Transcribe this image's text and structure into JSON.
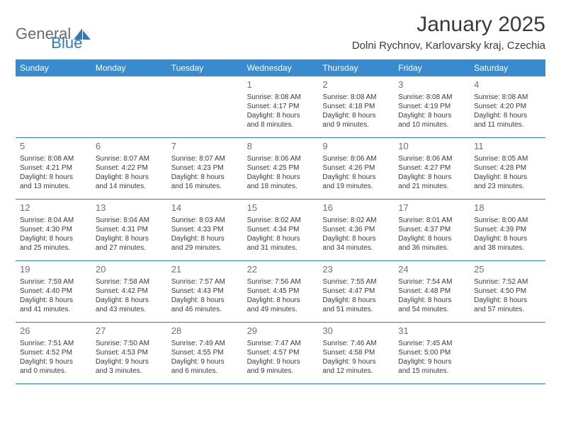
{
  "brand": {
    "word1": "General",
    "word2": "Blue",
    "word1_color": "#6b6b6b",
    "word2_color": "#2e7cc0",
    "logo_fill": "#2e7cc0"
  },
  "title": "January 2025",
  "location": "Dolni Rychnov, Karlovarsky kraj, Czechia",
  "weekday_bg": "#3a8bce",
  "weekday_color": "#ffffff",
  "divider_color": "#2e7cc0",
  "daynum_color": "#707070",
  "text_color": "#3a3a3a",
  "weekdays": [
    "Sunday",
    "Monday",
    "Tuesday",
    "Wednesday",
    "Thursday",
    "Friday",
    "Saturday"
  ],
  "weeks": [
    [
      null,
      null,
      null,
      {
        "n": "1",
        "sr": "Sunrise: 8:08 AM",
        "ss": "Sunset: 4:17 PM",
        "d1": "Daylight: 8 hours",
        "d2": "and 8 minutes."
      },
      {
        "n": "2",
        "sr": "Sunrise: 8:08 AM",
        "ss": "Sunset: 4:18 PM",
        "d1": "Daylight: 8 hours",
        "d2": "and 9 minutes."
      },
      {
        "n": "3",
        "sr": "Sunrise: 8:08 AM",
        "ss": "Sunset: 4:19 PM",
        "d1": "Daylight: 8 hours",
        "d2": "and 10 minutes."
      },
      {
        "n": "4",
        "sr": "Sunrise: 8:08 AM",
        "ss": "Sunset: 4:20 PM",
        "d1": "Daylight: 8 hours",
        "d2": "and 11 minutes."
      }
    ],
    [
      {
        "n": "5",
        "sr": "Sunrise: 8:08 AM",
        "ss": "Sunset: 4:21 PM",
        "d1": "Daylight: 8 hours",
        "d2": "and 13 minutes."
      },
      {
        "n": "6",
        "sr": "Sunrise: 8:07 AM",
        "ss": "Sunset: 4:22 PM",
        "d1": "Daylight: 8 hours",
        "d2": "and 14 minutes."
      },
      {
        "n": "7",
        "sr": "Sunrise: 8:07 AM",
        "ss": "Sunset: 4:23 PM",
        "d1": "Daylight: 8 hours",
        "d2": "and 16 minutes."
      },
      {
        "n": "8",
        "sr": "Sunrise: 8:06 AM",
        "ss": "Sunset: 4:25 PM",
        "d1": "Daylight: 8 hours",
        "d2": "and 18 minutes."
      },
      {
        "n": "9",
        "sr": "Sunrise: 8:06 AM",
        "ss": "Sunset: 4:26 PM",
        "d1": "Daylight: 8 hours",
        "d2": "and 19 minutes."
      },
      {
        "n": "10",
        "sr": "Sunrise: 8:06 AM",
        "ss": "Sunset: 4:27 PM",
        "d1": "Daylight: 8 hours",
        "d2": "and 21 minutes."
      },
      {
        "n": "11",
        "sr": "Sunrise: 8:05 AM",
        "ss": "Sunset: 4:28 PM",
        "d1": "Daylight: 8 hours",
        "d2": "and 23 minutes."
      }
    ],
    [
      {
        "n": "12",
        "sr": "Sunrise: 8:04 AM",
        "ss": "Sunset: 4:30 PM",
        "d1": "Daylight: 8 hours",
        "d2": "and 25 minutes."
      },
      {
        "n": "13",
        "sr": "Sunrise: 8:04 AM",
        "ss": "Sunset: 4:31 PM",
        "d1": "Daylight: 8 hours",
        "d2": "and 27 minutes."
      },
      {
        "n": "14",
        "sr": "Sunrise: 8:03 AM",
        "ss": "Sunset: 4:33 PM",
        "d1": "Daylight: 8 hours",
        "d2": "and 29 minutes."
      },
      {
        "n": "15",
        "sr": "Sunrise: 8:02 AM",
        "ss": "Sunset: 4:34 PM",
        "d1": "Daylight: 8 hours",
        "d2": "and 31 minutes."
      },
      {
        "n": "16",
        "sr": "Sunrise: 8:02 AM",
        "ss": "Sunset: 4:36 PM",
        "d1": "Daylight: 8 hours",
        "d2": "and 34 minutes."
      },
      {
        "n": "17",
        "sr": "Sunrise: 8:01 AM",
        "ss": "Sunset: 4:37 PM",
        "d1": "Daylight: 8 hours",
        "d2": "and 36 minutes."
      },
      {
        "n": "18",
        "sr": "Sunrise: 8:00 AM",
        "ss": "Sunset: 4:39 PM",
        "d1": "Daylight: 8 hours",
        "d2": "and 38 minutes."
      }
    ],
    [
      {
        "n": "19",
        "sr": "Sunrise: 7:59 AM",
        "ss": "Sunset: 4:40 PM",
        "d1": "Daylight: 8 hours",
        "d2": "and 41 minutes."
      },
      {
        "n": "20",
        "sr": "Sunrise: 7:58 AM",
        "ss": "Sunset: 4:42 PM",
        "d1": "Daylight: 8 hours",
        "d2": "and 43 minutes."
      },
      {
        "n": "21",
        "sr": "Sunrise: 7:57 AM",
        "ss": "Sunset: 4:43 PM",
        "d1": "Daylight: 8 hours",
        "d2": "and 46 minutes."
      },
      {
        "n": "22",
        "sr": "Sunrise: 7:56 AM",
        "ss": "Sunset: 4:45 PM",
        "d1": "Daylight: 8 hours",
        "d2": "and 49 minutes."
      },
      {
        "n": "23",
        "sr": "Sunrise: 7:55 AM",
        "ss": "Sunset: 4:47 PM",
        "d1": "Daylight: 8 hours",
        "d2": "and 51 minutes."
      },
      {
        "n": "24",
        "sr": "Sunrise: 7:54 AM",
        "ss": "Sunset: 4:48 PM",
        "d1": "Daylight: 8 hours",
        "d2": "and 54 minutes."
      },
      {
        "n": "25",
        "sr": "Sunrise: 7:52 AM",
        "ss": "Sunset: 4:50 PM",
        "d1": "Daylight: 8 hours",
        "d2": "and 57 minutes."
      }
    ],
    [
      {
        "n": "26",
        "sr": "Sunrise: 7:51 AM",
        "ss": "Sunset: 4:52 PM",
        "d1": "Daylight: 9 hours",
        "d2": "and 0 minutes."
      },
      {
        "n": "27",
        "sr": "Sunrise: 7:50 AM",
        "ss": "Sunset: 4:53 PM",
        "d1": "Daylight: 9 hours",
        "d2": "and 3 minutes."
      },
      {
        "n": "28",
        "sr": "Sunrise: 7:49 AM",
        "ss": "Sunset: 4:55 PM",
        "d1": "Daylight: 9 hours",
        "d2": "and 6 minutes."
      },
      {
        "n": "29",
        "sr": "Sunrise: 7:47 AM",
        "ss": "Sunset: 4:57 PM",
        "d1": "Daylight: 9 hours",
        "d2": "and 9 minutes."
      },
      {
        "n": "30",
        "sr": "Sunrise: 7:46 AM",
        "ss": "Sunset: 4:58 PM",
        "d1": "Daylight: 9 hours",
        "d2": "and 12 minutes."
      },
      {
        "n": "31",
        "sr": "Sunrise: 7:45 AM",
        "ss": "Sunset: 5:00 PM",
        "d1": "Daylight: 9 hours",
        "d2": "and 15 minutes."
      },
      null
    ]
  ]
}
